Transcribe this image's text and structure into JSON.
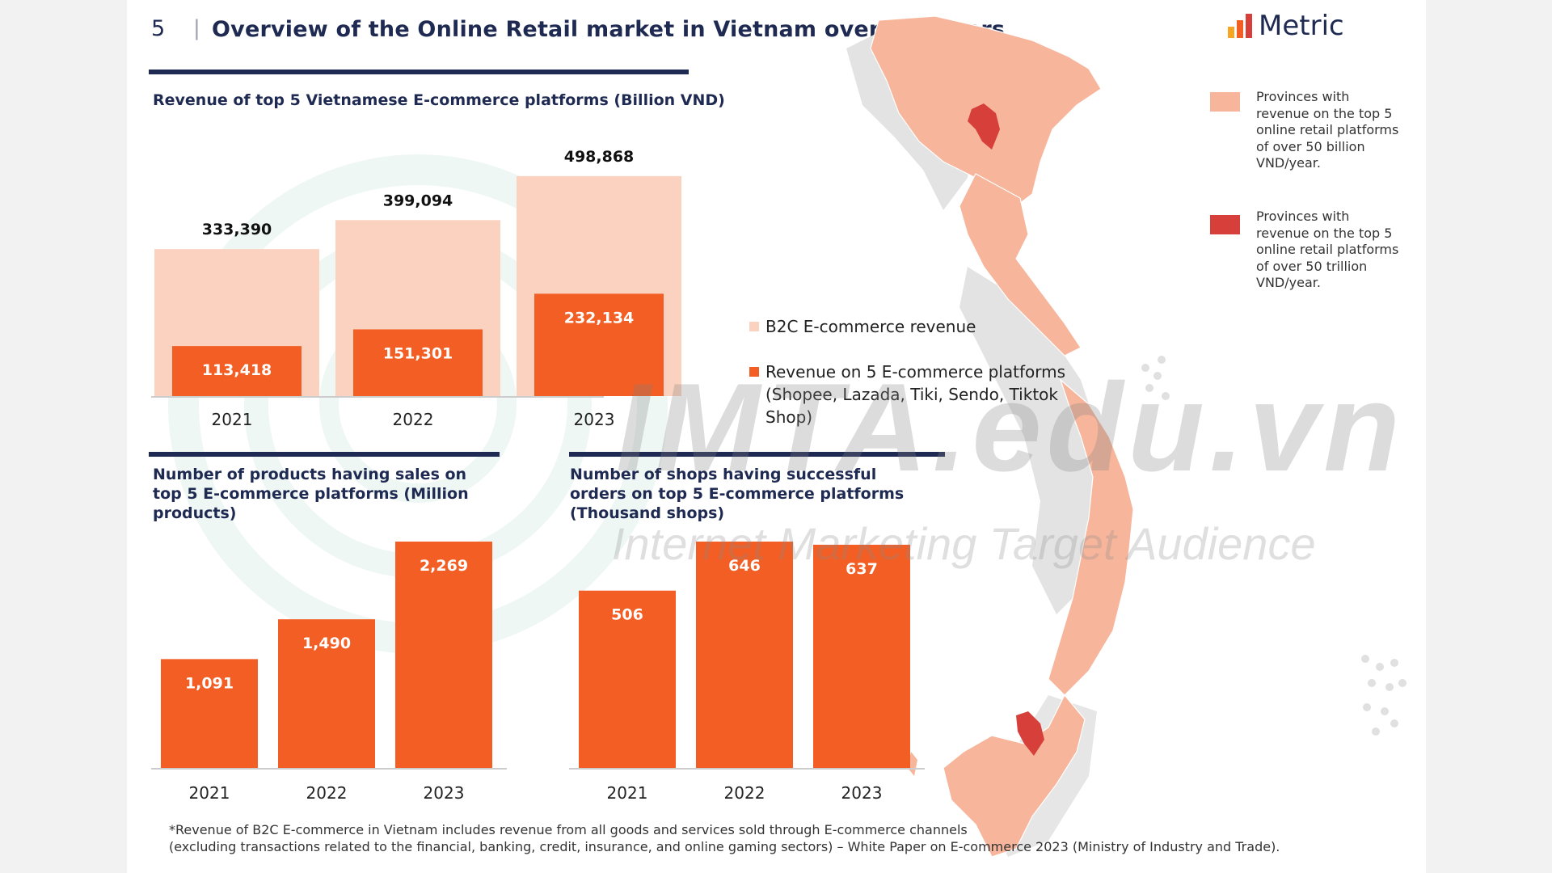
{
  "header": {
    "page_number": "5",
    "separator": "|",
    "title": "Overview of the Online Retail market in Vietnam over the years"
  },
  "logo": {
    "text": "Metric",
    "icon": "bar-chart-icon"
  },
  "map_legend": {
    "items": [
      {
        "color": "#f7b59b",
        "text": "Provinces with revenue on the top 5 online retail platforms of over 50 billion VND/year."
      },
      {
        "color": "#d63f3a",
        "text": "Provinces with revenue on the top 5 online retail platforms of over 50 trillion VND/year."
      }
    ]
  },
  "legend": {
    "b2c": {
      "color": "#fbd2c0",
      "label": "B2C E-commerce revenue"
    },
    "platforms": {
      "color": "#f25e24",
      "label": "Revenue on 5 E-commerce platforms (Shopee, Lazada, Tiki, Sendo, Tiktok Shop)"
    }
  },
  "watermark": {
    "main": "IMTA.edu.vn",
    "sub": "Internet Marketing Target Audience"
  },
  "footnote": {
    "line1": "*Revenue of B2C E-commerce in Vietnam includes revenue from all goods and services sold through E-commerce channels",
    "line2": "(excluding transactions related to the financial, banking, credit, insurance, and online gaming sectors) – White Paper on E-commerce 2023 (Ministry of Industry and Trade)."
  },
  "colors": {
    "navy": "#1f2a52",
    "orange": "#f25e24",
    "light_orange": "#fbd2c0",
    "map_light": "#f7b59b",
    "map_dark": "#d63f3a",
    "map_gray": "#e0e0e0"
  },
  "chart_data": [
    {
      "type": "bar",
      "title": "Revenue of top 5 Vietnamese E-commerce platforms (Billion VND)",
      "categories": [
        "2021",
        "2022",
        "2023"
      ],
      "series": [
        {
          "name": "B2C E-commerce revenue",
          "values": [
            333390,
            399094,
            498868
          ],
          "labels": [
            "333,390",
            "399,094",
            "498,868"
          ],
          "color": "#fbd2c0"
        },
        {
          "name": "Revenue on 5 E-commerce platforms",
          "values": [
            113418,
            151301,
            232134
          ],
          "labels": [
            "113,418",
            "151,301",
            "232,134"
          ],
          "color": "#f25e24"
        }
      ],
      "ylim": [
        0,
        550000
      ]
    },
    {
      "type": "bar",
      "title": "Number of products having sales on top 5 E-commerce platforms (Million products)",
      "categories": [
        "2021",
        "2022",
        "2023"
      ],
      "values": [
        1091,
        1490,
        2269
      ],
      "labels": [
        "1,091",
        "1,490",
        "2,269"
      ],
      "ylim": [
        0,
        2269
      ]
    },
    {
      "type": "bar",
      "title": "Number of shops having successful orders on top 5 E-commerce platforms (Thousand shops)",
      "categories": [
        "2021",
        "2022",
        "2023"
      ],
      "values": [
        506,
        646,
        637
      ],
      "labels": [
        "506",
        "646",
        "637"
      ],
      "ylim": [
        0,
        646
      ]
    }
  ]
}
